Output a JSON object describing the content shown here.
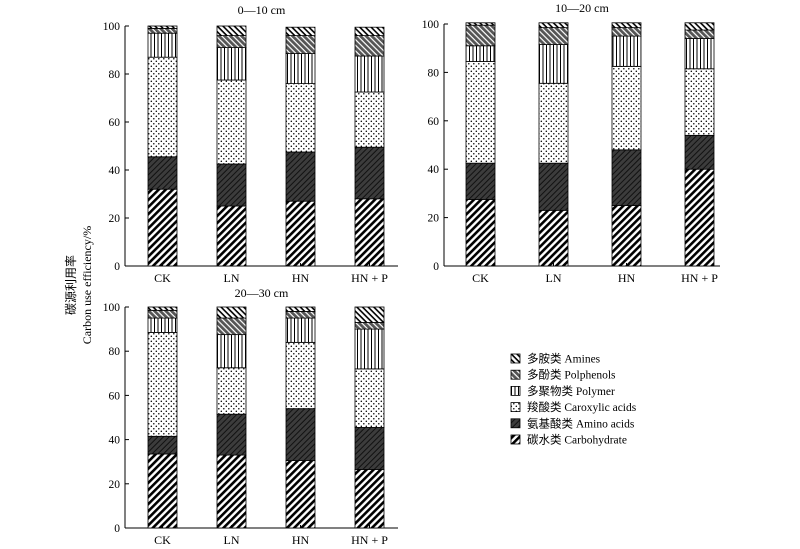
{
  "ylabel_cn": "碳源利用率",
  "ylabel_en": "Carbon use efficiency/%",
  "chart_data": {
    "type": "bar",
    "stacked": true,
    "categories": [
      "CK",
      "LN",
      "HN",
      "HN + P"
    ],
    "ylim": [
      0,
      100
    ],
    "yticks": [
      0,
      20,
      40,
      60,
      80,
      100
    ],
    "grid": false,
    "legend_placement": "bottom-right",
    "legend": [
      {
        "key": "amines",
        "label": "多胺类 Amines",
        "pattern": "hatch-dense"
      },
      {
        "key": "polyphenols",
        "label": "多酚类 Polphenols",
        "pattern": "hatch-sparse"
      },
      {
        "key": "polymer",
        "label": "多聚物类 Polymer",
        "pattern": "vlines"
      },
      {
        "key": "carboxylic",
        "label": "羧酸类 Caroxylic acids",
        "pattern": "dots"
      },
      {
        "key": "amino",
        "label": "氨基酸类 Amino acids",
        "pattern": "dark"
      },
      {
        "key": "carbohydrate",
        "label": "碳水类 Carbohydrate",
        "pattern": "hatch-med"
      }
    ],
    "panels": [
      {
        "title": "0—10 cm",
        "series": [
          {
            "name": "碳水类 Carbohydrate",
            "key": "carbohydrate",
            "values": [
              32,
              25,
              27,
              28
            ]
          },
          {
            "name": "氨基酸类 Amino acids",
            "key": "amino",
            "values": [
              13.5,
              17.5,
              20.5,
              21.5
            ]
          },
          {
            "name": "羧酸类 Caroxylic acids",
            "key": "carboxylic",
            "values": [
              41.5,
              35,
              28.5,
              23
            ]
          },
          {
            "name": "多聚物类 Polymer",
            "key": "polymer",
            "values": [
              10,
              13.5,
              12.5,
              15
            ]
          },
          {
            "name": "多酚类 Polphenols",
            "key": "polyphenols",
            "values": [
              2,
              5,
              7.5,
              8.5
            ]
          },
          {
            "name": "多胺类 Amines",
            "key": "amines",
            "values": [
              1,
              4,
              3.5,
              3.5
            ]
          }
        ]
      },
      {
        "title": "10—20 cm",
        "series": [
          {
            "name": "碳水类 Carbohydrate",
            "key": "carbohydrate",
            "values": [
              27.5,
              23,
              25,
              40
            ]
          },
          {
            "name": "氨基酸类 Amino acids",
            "key": "amino",
            "values": [
              15,
              19.5,
              23,
              14
            ]
          },
          {
            "name": "羧酸类 Caroxylic acids",
            "key": "carboxylic",
            "values": [
              42,
              33,
              34.5,
              27.5
            ]
          },
          {
            "name": "多聚物类 Polymer",
            "key": "polymer",
            "values": [
              6.5,
              16,
              12.5,
              12.5
            ]
          },
          {
            "name": "多酚类 Polphenols",
            "key": "polyphenols",
            "values": [
              8.5,
              7,
              3.5,
              3.5
            ]
          },
          {
            "name": "多胺类 Amines",
            "key": "amines",
            "values": [
              1,
              2,
              2,
              3
            ]
          }
        ]
      },
      {
        "title": "20—30 cm",
        "series": [
          {
            "name": "碳水类 Carbohydrate",
            "key": "carbohydrate",
            "values": [
              33.5,
              33,
              30.5,
              26.5
            ]
          },
          {
            "name": "氨基酸类 Amino acids",
            "key": "amino",
            "values": [
              8,
              18.5,
              23.5,
              19
            ]
          },
          {
            "name": "羧酸类 Caroxylic acids",
            "key": "carboxylic",
            "values": [
              47,
              21,
              30,
              26.5
            ]
          },
          {
            "name": "多聚物类 Polymer",
            "key": "polymer",
            "values": [
              6.5,
              15,
              11,
              18
            ]
          },
          {
            "name": "多酚类 Polphenols",
            "key": "polyphenols",
            "values": [
              3.5,
              7.5,
              3,
              3
            ]
          },
          {
            "name": "多胺类 Amines",
            "key": "amines",
            "values": [
              1.5,
              5,
              2,
              7
            ]
          }
        ]
      }
    ]
  }
}
